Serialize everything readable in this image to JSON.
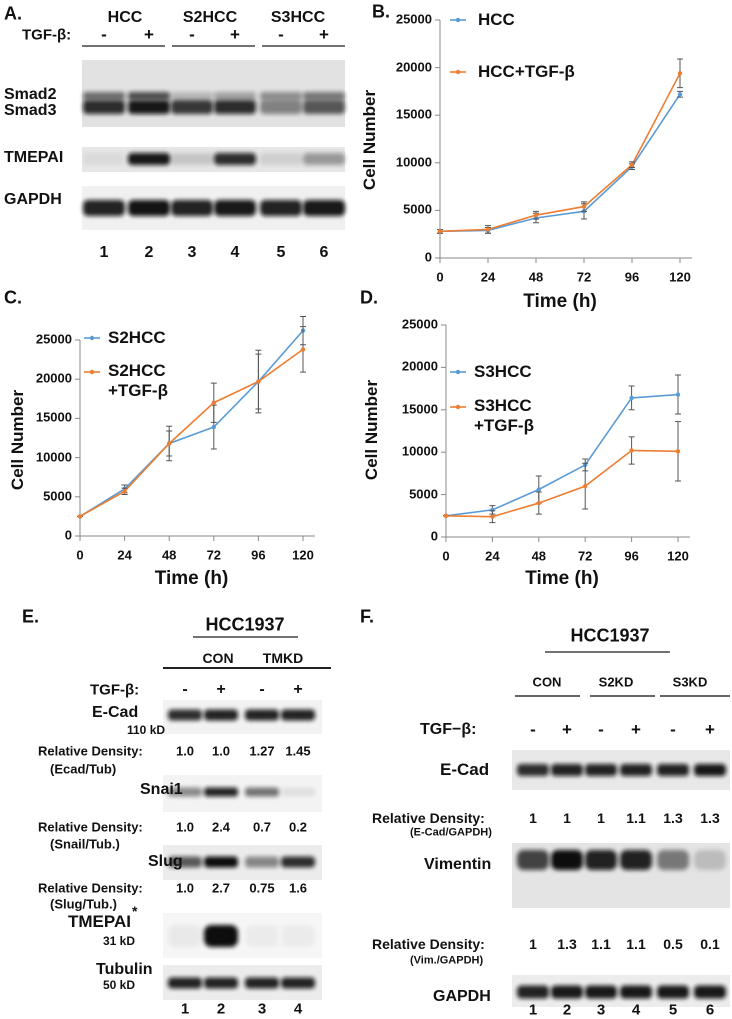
{
  "panel_a": {
    "label": "A.",
    "groups": [
      "HCC",
      "S2HCC",
      "S3HCC"
    ],
    "treatment": "TGF-β:",
    "signs": [
      "-",
      "+",
      "-",
      "+",
      "-",
      "+"
    ],
    "rows": [
      "Smad2",
      "Smad3",
      "TMEPAI",
      "GAPDH"
    ],
    "lanes": [
      "1",
      "2",
      "3",
      "4",
      "5",
      "6"
    ]
  },
  "chart_data": [
    {
      "type": "line",
      "label": "B.",
      "xlabel": "Time (h)",
      "ylabel": "Cell Number",
      "x": [
        0,
        24,
        48,
        72,
        96,
        120
      ],
      "xlim": [
        0,
        120
      ],
      "xticks": [
        0,
        24,
        48,
        72,
        96,
        120
      ],
      "ylim": [
        0,
        25000
      ],
      "yticks": [
        0,
        5000,
        10000,
        15000,
        20000,
        25000
      ],
      "series": [
        {
          "name": "HCC",
          "color": "#5b9bd5",
          "values": [
            2800,
            2900,
            4200,
            4900,
            9600,
            17200
          ],
          "errors": [
            200,
            300,
            500,
            800,
            300,
            300
          ]
        },
        {
          "name": "HCC+TGF-β",
          "color": "#ed7d31",
          "values": [
            2800,
            3000,
            4500,
            5400,
            9800,
            19400
          ],
          "errors": [
            200,
            400,
            400,
            500,
            300,
            1500
          ]
        }
      ]
    },
    {
      "type": "line",
      "label": "C.",
      "xlabel": "Time (h)",
      "ylabel": "Cell Number",
      "x": [
        0,
        24,
        48,
        72,
        96,
        120
      ],
      "xlim": [
        0,
        120
      ],
      "xticks": [
        0,
        24,
        48,
        72,
        96,
        120
      ],
      "ylim": [
        0,
        25000
      ],
      "yticks": [
        0,
        5000,
        10000,
        15000,
        20000,
        25000
      ],
      "series": [
        {
          "name": "S2HCC",
          "color": "#5b9bd5",
          "values": [
            2500,
            6000,
            11800,
            13900,
            19700,
            26200
          ],
          "errors": [
            0,
            500,
            2200,
            2800,
            4000,
            1800
          ]
        },
        {
          "name": "S2HCC +TGF-β",
          "color": "#ed7d31",
          "values": [
            2500,
            5700,
            11800,
            17000,
            19700,
            23800
          ],
          "errors": [
            0,
            400,
            1600,
            2500,
            3500,
            2900
          ]
        }
      ]
    },
    {
      "type": "line",
      "label": "D.",
      "xlabel": "Time (h)",
      "ylabel": "Cell Number",
      "x": [
        0,
        24,
        48,
        72,
        96,
        120
      ],
      "xlim": [
        0,
        120
      ],
      "xticks": [
        0,
        24,
        48,
        72,
        96,
        120
      ],
      "ylim": [
        0,
        25000
      ],
      "yticks": [
        0,
        5000,
        10000,
        15000,
        20000,
        25000
      ],
      "series": [
        {
          "name": "S3HCC",
          "color": "#5b9bd5",
          "values": [
            2500,
            3200,
            5600,
            8500,
            16400,
            16800
          ],
          "errors": [
            0,
            500,
            1600,
            700,
            1400,
            2300
          ]
        },
        {
          "name": "S3HCC +TGF-β",
          "color": "#ed7d31",
          "values": [
            2500,
            2400,
            4000,
            6000,
            10200,
            10100
          ],
          "errors": [
            0,
            700,
            1300,
            2700,
            1600,
            3500
          ]
        }
      ]
    }
  ],
  "panel_e": {
    "label": "E.",
    "cell_line": "HCC1937",
    "groups": [
      "CON",
      "TMKD"
    ],
    "treatment": "TGF-β:",
    "signs": [
      "-",
      "+",
      "-",
      "+"
    ],
    "blots": [
      {
        "name": "E-Cad",
        "size": "110 kD"
      },
      {
        "name": "Snai1"
      },
      {
        "name": "Slug"
      },
      {
        "name": "TMEPAI",
        "mark": "*",
        "size": "31 kD"
      },
      {
        "name": "Tubulin",
        "size": "50 kD"
      }
    ],
    "densities": [
      {
        "label": "Relative Density:",
        "ratio": "(Ecad/Tub)",
        "values": [
          "1.0",
          "1.0",
          "1.27",
          "1.45"
        ]
      },
      {
        "label": "Relative Density:",
        "ratio": "(Snail/Tub.)",
        "values": [
          "1.0",
          "2.4",
          "0.7",
          "0.2"
        ]
      },
      {
        "label": "Relative Density:",
        "ratio": "(Slug/Tub.)",
        "values": [
          "1.0",
          "2.7",
          "0.75",
          "1.6"
        ]
      }
    ],
    "lanes": [
      "1",
      "2",
      "3",
      "4"
    ]
  },
  "panel_f": {
    "label": "F.",
    "cell_line": "HCC1937",
    "groups": [
      "CON",
      "S2KD",
      "S3KD"
    ],
    "treatment": "TGF−β:",
    "signs": [
      "-",
      "+",
      "-",
      "+",
      "-",
      "+"
    ],
    "blots": [
      {
        "name": "E-Cad"
      },
      {
        "name": "Vimentin"
      },
      {
        "name": "GAPDH"
      }
    ],
    "densities": [
      {
        "label": "Relative Density:",
        "ratio": "(E-Cad/GAPDH)",
        "values": [
          "1",
          "1",
          "1",
          "1.1",
          "1.3",
          "1.3"
        ]
      },
      {
        "label": "Relative Density:",
        "ratio": "(Vim./GAPDH)",
        "values": [
          "1",
          "1.3",
          "1.1",
          "1.1",
          "0.5",
          "0.1"
        ]
      }
    ],
    "lanes": [
      "1",
      "2",
      "3",
      "4",
      "5",
      "6"
    ]
  }
}
